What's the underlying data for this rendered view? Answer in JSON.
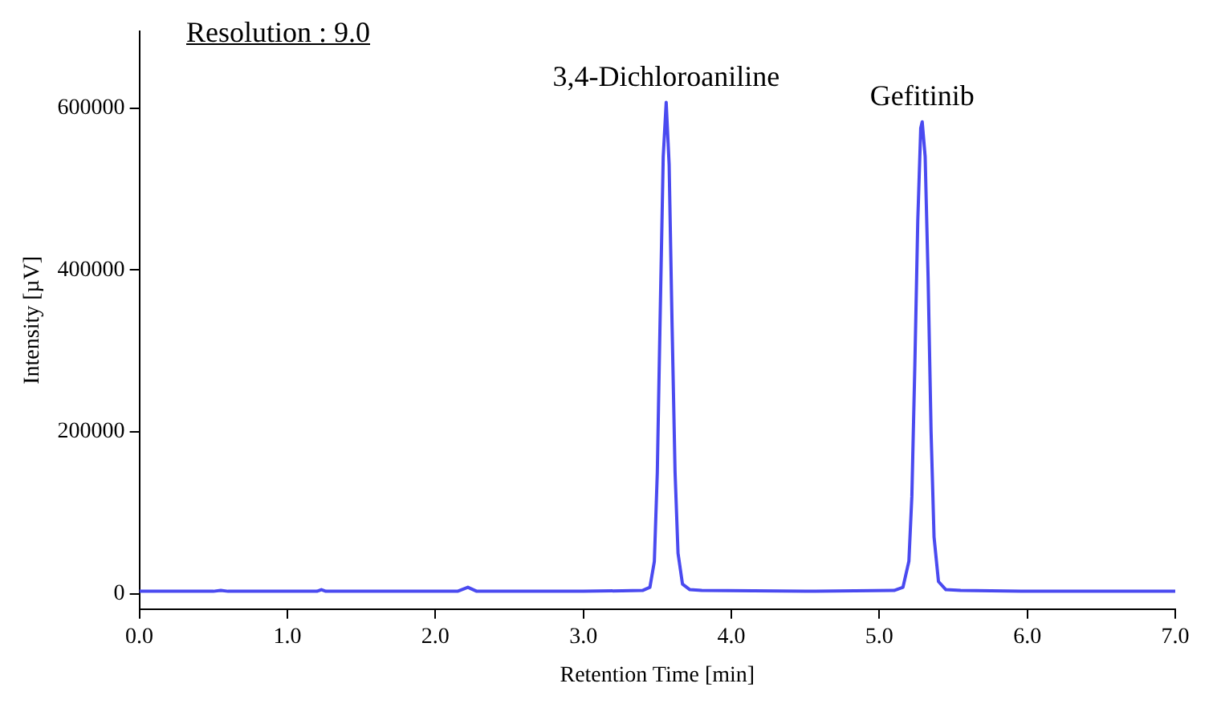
{
  "chart_data": {
    "type": "line",
    "xlabel": "Retention Time [min]",
    "ylabel": "Intensity [µV]",
    "annotations": [
      "Resolution : 9.0",
      {
        "text": "3,4-Dichloroaniline",
        "x": 3.56,
        "y": 607000
      },
      {
        "text": "Gefitinib",
        "x": 5.29,
        "y": 583000
      }
    ],
    "series": [
      {
        "color": "#4a4af0",
        "x": [
          0,
          0.5,
          0.55,
          0.6,
          1.2,
          1.23,
          1.26,
          2.15,
          2.22,
          2.28,
          3.0,
          3.4,
          3.45,
          3.48,
          3.5,
          3.52,
          3.54,
          3.56,
          3.58,
          3.6,
          3.62,
          3.64,
          3.67,
          3.72,
          3.8,
          4.5,
          5.1,
          5.16,
          5.2,
          5.22,
          5.24,
          5.26,
          5.28,
          5.29,
          5.31,
          5.33,
          5.35,
          5.37,
          5.4,
          5.45,
          5.55,
          6.0,
          6.6,
          7.0
        ],
        "values": [
          3000,
          3000,
          4000,
          3000,
          3000,
          5000,
          3000,
          3000,
          8000,
          3000,
          3000,
          4000,
          8000,
          40000,
          150000,
          350000,
          540000,
          607000,
          530000,
          330000,
          150000,
          50000,
          12000,
          5000,
          4000,
          3000,
          4000,
          8000,
          40000,
          120000,
          280000,
          460000,
          575000,
          583000,
          540000,
          390000,
          200000,
          70000,
          15000,
          5000,
          4000,
          3000,
          3000,
          3000
        ]
      }
    ],
    "xlim": [
      0,
      7
    ],
    "ylim": [
      -19000,
      695000
    ],
    "xticks": [
      {
        "value": 0,
        "label": "0.0"
      },
      {
        "value": 1,
        "label": "1.0"
      },
      {
        "value": 2,
        "label": "2.0"
      },
      {
        "value": 3,
        "label": "3.0"
      },
      {
        "value": 4,
        "label": "4.0"
      },
      {
        "value": 5,
        "label": "5.0"
      },
      {
        "value": 6,
        "label": "6.0"
      },
      {
        "value": 7,
        "label": "7.0"
      }
    ],
    "yticks": [
      0,
      200000,
      400000,
      600000
    ],
    "grid": false,
    "legend": false,
    "marker": "none",
    "line_style": "solid"
  }
}
